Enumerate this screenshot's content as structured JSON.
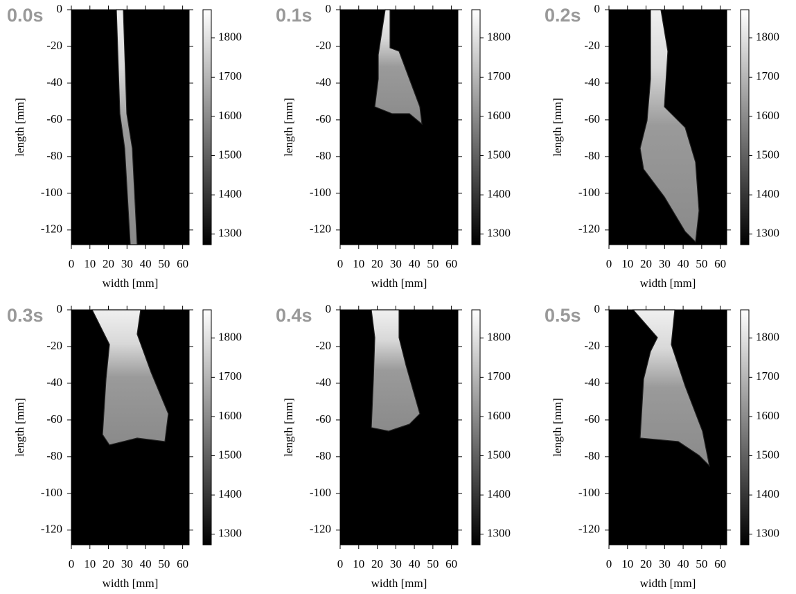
{
  "chart_data": [
    {
      "type": "heatmap",
      "title": "0.0s",
      "xlabel": "width [mm]",
      "ylabel": "length [mm]",
      "xlim": [
        0,
        63.5
      ],
      "ylim": [
        -128,
        0
      ],
      "xticks": [
        0,
        10,
        20,
        30,
        40,
        50,
        60
      ],
      "yticks": [
        0,
        -20,
        -40,
        -60,
        -80,
        -100,
        -120
      ],
      "clim": [
        1273,
        1872
      ],
      "cticks": [
        1300,
        1400,
        1500,
        1600,
        1700,
        1800
      ],
      "colormap": "gray"
    },
    {
      "type": "heatmap",
      "title": "0.1s",
      "xlabel": "width [mm]",
      "ylabel": "length [mm]",
      "xlim": [
        0,
        63.5
      ],
      "ylim": [
        -128,
        0
      ],
      "xticks": [
        0,
        10,
        20,
        30,
        40,
        50,
        60
      ],
      "yticks": [
        0,
        -20,
        -40,
        -60,
        -80,
        -100,
        -120
      ],
      "clim": [
        1273,
        1872
      ],
      "cticks": [
        1300,
        1400,
        1500,
        1600,
        1700,
        1800
      ],
      "colormap": "gray"
    },
    {
      "type": "heatmap",
      "title": "0.2s",
      "xlabel": "width [mm]",
      "ylabel": "length [mm]",
      "xlim": [
        0,
        63.5
      ],
      "ylim": [
        -128,
        0
      ],
      "xticks": [
        0,
        10,
        20,
        30,
        40,
        50,
        60
      ],
      "yticks": [
        0,
        -20,
        -40,
        -60,
        -80,
        -100,
        -120
      ],
      "clim": [
        1273,
        1872
      ],
      "cticks": [
        1300,
        1400,
        1500,
        1600,
        1700,
        1800
      ],
      "colormap": "gray"
    },
    {
      "type": "heatmap",
      "title": "0.3s",
      "xlabel": "width [mm]",
      "ylabel": "length [mm]",
      "xlim": [
        0,
        63.5
      ],
      "ylim": [
        -128,
        0
      ],
      "xticks": [
        0,
        10,
        20,
        30,
        40,
        50,
        60
      ],
      "yticks": [
        0,
        -20,
        -40,
        -60,
        -80,
        -100,
        -120
      ],
      "clim": [
        1273,
        1872
      ],
      "cticks": [
        1300,
        1400,
        1500,
        1600,
        1700,
        1800
      ],
      "colormap": "gray"
    },
    {
      "type": "heatmap",
      "title": "0.4s",
      "xlabel": "width [mm]",
      "ylabel": "length [mm]",
      "xlim": [
        0,
        63.5
      ],
      "ylim": [
        -128,
        0
      ],
      "xticks": [
        0,
        10,
        20,
        30,
        40,
        50,
        60
      ],
      "yticks": [
        0,
        -20,
        -40,
        -60,
        -80,
        -100,
        -120
      ],
      "clim": [
        1273,
        1872
      ],
      "cticks": [
        1300,
        1400,
        1500,
        1600,
        1700,
        1800
      ],
      "colormap": "gray"
    },
    {
      "type": "heatmap",
      "title": "0.5s",
      "xlabel": "width [mm]",
      "ylabel": "length [mm]",
      "xlim": [
        0,
        63.5
      ],
      "ylim": [
        -128,
        0
      ],
      "xticks": [
        0,
        10,
        20,
        30,
        40,
        50,
        60
      ],
      "yticks": [
        0,
        -20,
        -40,
        -60,
        -80,
        -100,
        -120
      ],
      "clim": [
        1273,
        1872
      ],
      "cticks": [
        1300,
        1400,
        1500,
        1600,
        1700,
        1800
      ],
      "colormap": "gray"
    }
  ]
}
